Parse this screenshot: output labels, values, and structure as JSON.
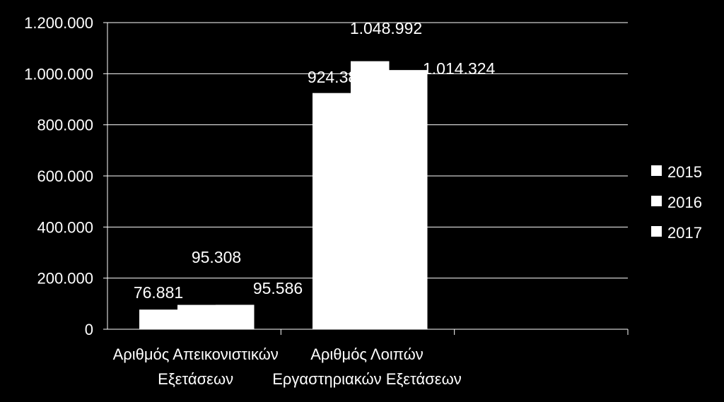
{
  "chart_data": {
    "type": "bar",
    "categories": [
      [
        "Αριθμός Απεικονιστικών",
        "Εξετάσεων"
      ],
      [
        "Αριθμός Λοιπών",
        "Εργαστηριακών Εξετάσεων"
      ]
    ],
    "series": [
      {
        "name": "2015",
        "values": [
          76881,
          924380
        ],
        "labels": [
          "76.881",
          "924.38"
        ]
      },
      {
        "name": "2016",
        "values": [
          95308,
          1048992
        ],
        "labels": [
          "95.308",
          "1.048.992"
        ]
      },
      {
        "name": "2017",
        "values": [
          95586,
          1014324
        ],
        "labels": [
          "95.586",
          "1.014.324"
        ]
      }
    ],
    "yticks": [
      {
        "value": 0,
        "label": "0"
      },
      {
        "value": 200000,
        "label": "200.000"
      },
      {
        "value": 400000,
        "label": "400.000"
      },
      {
        "value": 600000,
        "label": "600.000"
      },
      {
        "value": 800000,
        "label": "800.000"
      },
      {
        "value": 1000000,
        "label": "1.000.000"
      },
      {
        "value": 1200000,
        "label": "1.200.000"
      }
    ],
    "ylim": [
      0,
      1200000
    ],
    "grid": true,
    "legend_position": "right",
    "colors": {
      "background": "#000000",
      "bars": "#ffffff",
      "grid": "#ffffff",
      "text": "#ffffff"
    }
  }
}
